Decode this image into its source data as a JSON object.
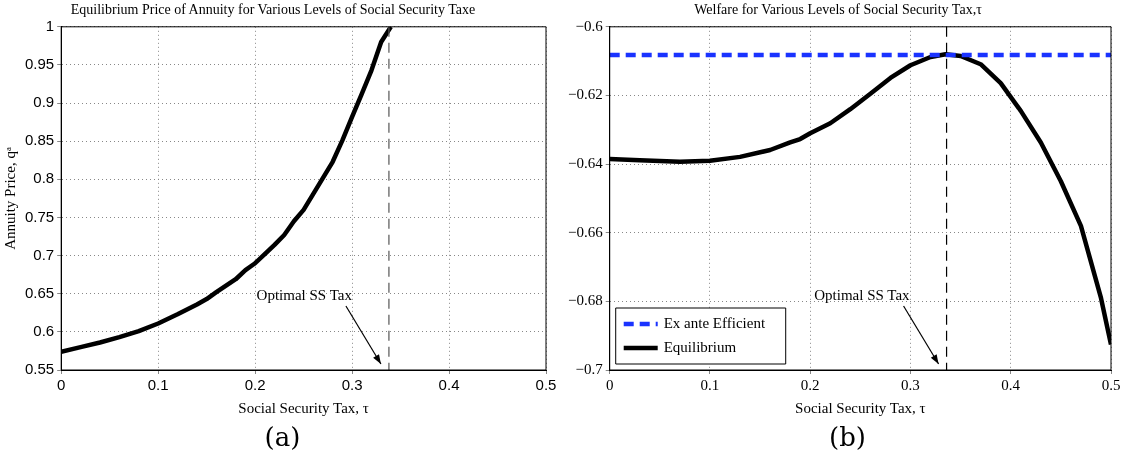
{
  "chart_data": [
    {
      "type": "line",
      "title": "Equilibrium Price of Annuity for Various Levels of Social Security Taxe",
      "xlabel": "Social Security Tax, τ",
      "ylabel": "Annuity Price, qᵃ",
      "series": [
        {
          "color": "#000000",
          "x": [
            0,
            0.02,
            0.04,
            0.06,
            0.08,
            0.1,
            0.12,
            0.14,
            0.15,
            0.16,
            0.18,
            0.19,
            0.2,
            0.22,
            0.23,
            0.24,
            0.25,
            0.26,
            0.28,
            0.29,
            0.3,
            0.31,
            0.32,
            0.33,
            0.34
          ],
          "values": [
            0.574,
            0.58,
            0.586,
            0.593,
            0.601,
            0.611,
            0.623,
            0.636,
            0.643,
            0.652,
            0.669,
            0.681,
            0.69,
            0.714,
            0.727,
            0.745,
            0.76,
            0.781,
            0.823,
            0.851,
            0.882,
            0.912,
            0.943,
            0.98,
            1.0
          ]
        }
      ],
      "xlim": [
        0,
        0.5
      ],
      "xticks": [
        0,
        0.1,
        0.2,
        0.3,
        0.4,
        {
          "value": 0.5,
          "label": "0.5"
        }
      ],
      "ylim": [
        0.55,
        1
      ],
      "yticks": [
        0.55,
        0.6,
        0.65,
        0.7,
        0.75,
        0.8,
        0.85,
        0.9,
        0.95,
        1
      ],
      "grid": true,
      "legend": false,
      "line_style": "solid",
      "marker": "none",
      "ref_lines": [
        {
          "axis": "x",
          "value": 0.338,
          "color": "#555555",
          "line_style": "dashed",
          "label": "Optimal SS Tax"
        }
      ],
      "annotations": [
        "(a)"
      ]
    },
    {
      "type": "line",
      "title": "Welfare for Various Levels of Social Security Tax,τ",
      "xlabel": "Social Security Tax, τ",
      "series": [
        {
          "name": "Ex ante Efficient",
          "color": "#1a33ff",
          "line_style": "dashed",
          "x": [
            0,
            0.5
          ],
          "values": [
            -0.6082,
            -0.6082
          ]
        },
        {
          "name": "Equilibrium",
          "color": "#000000",
          "line_style": "solid",
          "x": [
            0,
            0.03,
            0.07,
            0.1,
            0.13,
            0.16,
            0.18,
            0.19,
            0.2,
            0.22,
            0.24,
            0.26,
            0.28,
            0.3,
            0.32,
            0.335,
            0.35,
            0.37,
            0.39,
            0.41,
            0.43,
            0.45,
            0.47,
            0.49,
            0.5
          ],
          "values": [
            -0.6385,
            -0.6389,
            -0.6393,
            -0.639,
            -0.6379,
            -0.6359,
            -0.6337,
            -0.6327,
            -0.631,
            -0.6281,
            -0.624,
            -0.6195,
            -0.6149,
            -0.6112,
            -0.6088,
            -0.608,
            -0.6085,
            -0.6109,
            -0.6164,
            -0.6245,
            -0.6337,
            -0.645,
            -0.658,
            -0.679,
            -0.6926
          ]
        }
      ],
      "xlim": [
        0,
        0.5
      ],
      "xticks": [
        0,
        0.1,
        0.2,
        0.3,
        0.4,
        0.5
      ],
      "ylim": [
        -0.7,
        -0.6
      ],
      "yticks": [
        -0.7,
        -0.68,
        -0.66,
        -0.64,
        -0.62,
        -0.6
      ],
      "grid": true,
      "legend": "bottom left",
      "marker": "none",
      "ref_lines": [
        {
          "axis": "x",
          "value": 0.336,
          "color": "#000000",
          "line_style": "dashed",
          "label": "Optimal SS Tax"
        }
      ],
      "annotations": [
        "(b)"
      ]
    }
  ]
}
